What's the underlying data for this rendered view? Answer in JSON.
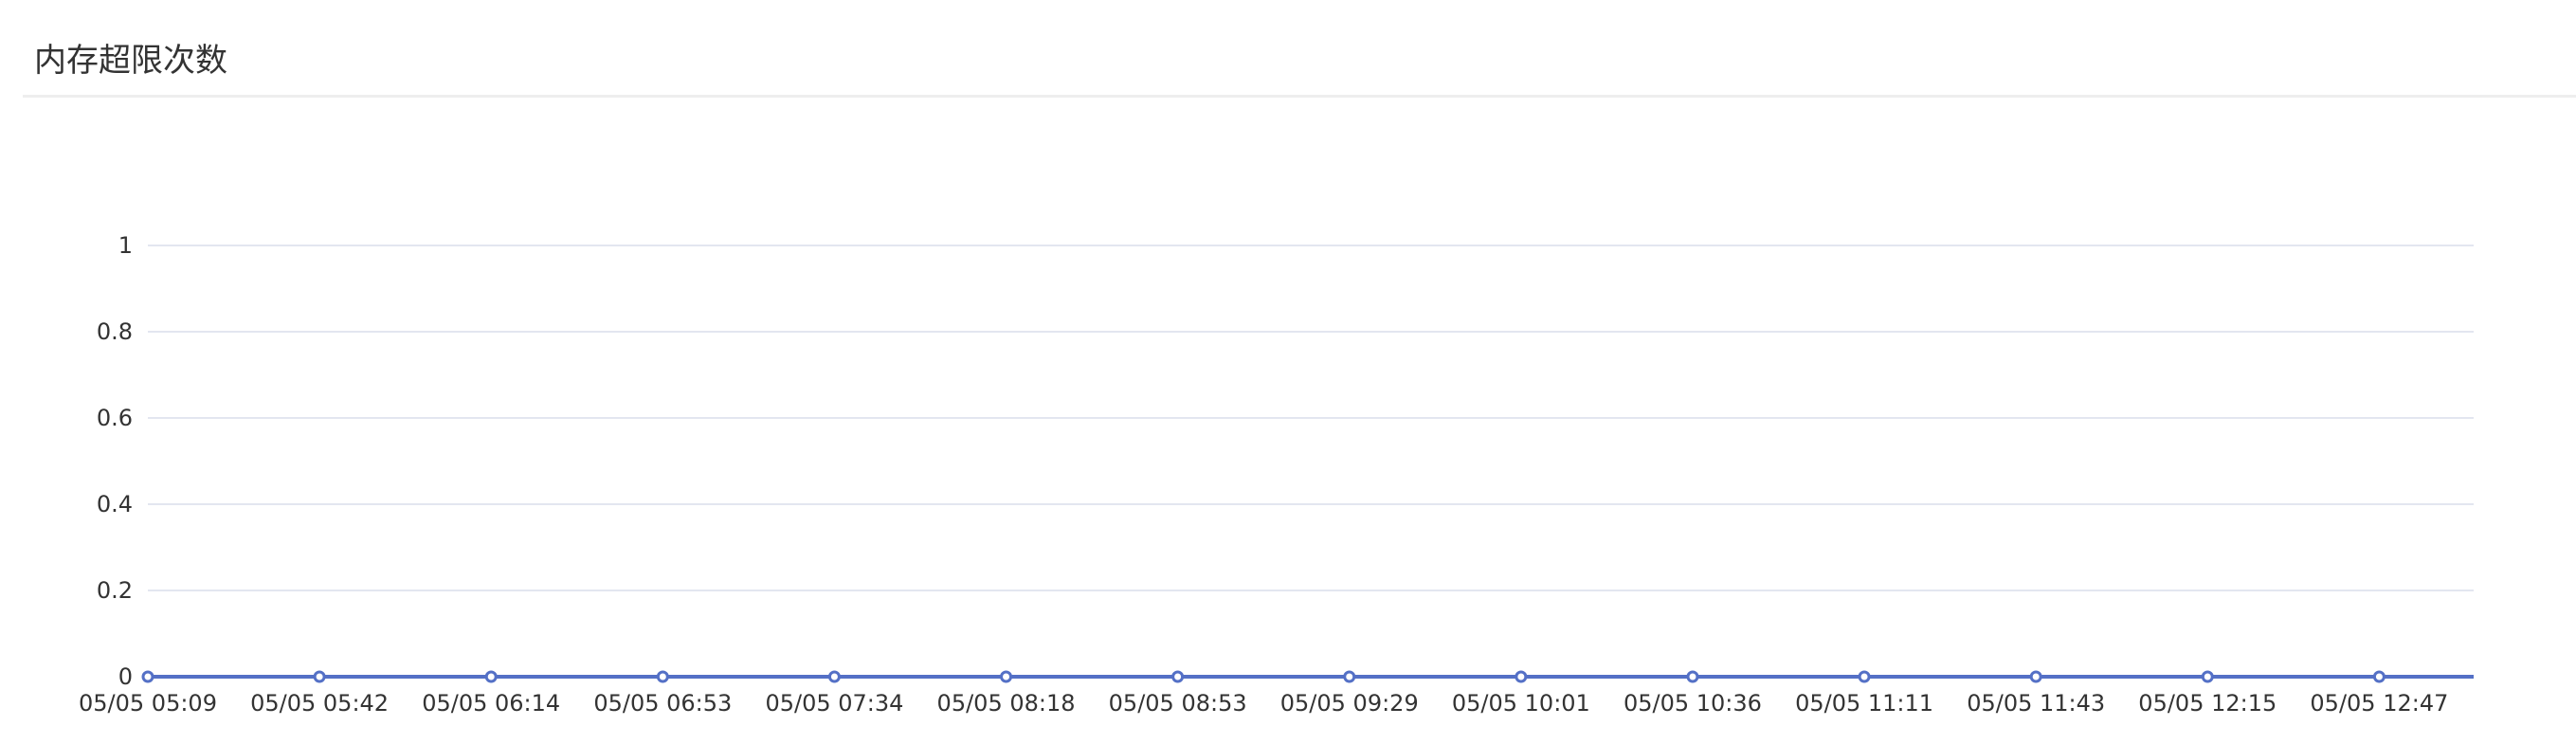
{
  "panel": {
    "title": "内存超限次数"
  },
  "colors": {
    "series": "#5470c6",
    "grid": "#e3e6f0",
    "text": "#333333"
  },
  "chart_data": {
    "type": "line",
    "title": "内存超限次数",
    "xlabel": "",
    "ylabel": "",
    "ylim": [
      0,
      1
    ],
    "y_ticks": [
      "0",
      "0.2",
      "0.4",
      "0.6",
      "0.8",
      "1"
    ],
    "grid": true,
    "categories": [
      "05/05 05:09",
      "05/05 05:42",
      "05/05 06:14",
      "05/05 06:53",
      "05/05 07:34",
      "05/05 08:18",
      "05/05 08:53",
      "05/05 09:29",
      "05/05 10:01",
      "05/05 10:36",
      "05/05 11:11",
      "05/05 11:43",
      "05/05 12:15",
      "05/05 12:47"
    ],
    "series": [
      {
        "values": [
          0,
          0,
          0,
          0,
          0,
          0,
          0,
          0,
          0,
          0,
          0,
          0,
          0,
          0
        ]
      }
    ]
  }
}
